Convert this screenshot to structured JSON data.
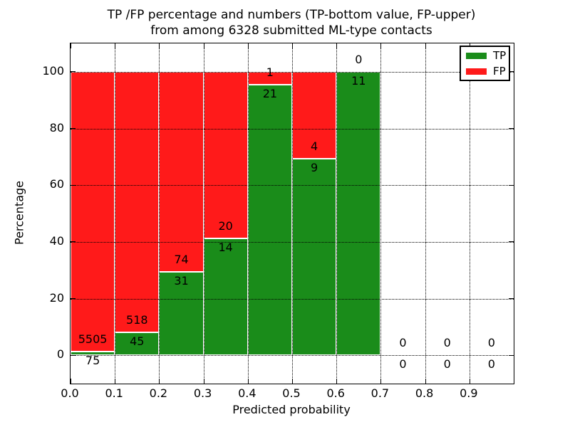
{
  "figure": {
    "title_line1": "TP /FP percentage and numbers (TP-bottom value, FP-upper)",
    "title_line2": "from among 6328 submitted ML-type contacts"
  },
  "axes": {
    "xlabel": "Predicted probability",
    "ylabel": "Percentage",
    "x_tick_labels": [
      "0.0",
      "0.1",
      "0.2",
      "0.3",
      "0.4",
      "0.5",
      "0.6",
      "0.7",
      "0.8",
      "0.9"
    ],
    "y_tick_labels": [
      "0",
      "20",
      "40",
      "60",
      "80",
      "100"
    ],
    "x_tick_values": [
      0.0,
      0.1,
      0.2,
      0.3,
      0.4,
      0.5,
      0.6,
      0.7,
      0.8,
      0.9
    ],
    "y_tick_values": [
      0,
      20,
      40,
      60,
      80,
      100
    ]
  },
  "legend": {
    "position": "upper right",
    "entries": [
      {
        "label": "TP",
        "color": "#1a8c1a"
      },
      {
        "label": "FP",
        "color": "#ff1a1a"
      }
    ]
  },
  "chart_data": {
    "type": "bar",
    "stacked": true,
    "title": "TP /FP percentage and numbers (TP-bottom value, FP-upper) from among 6328 submitted ML-type contacts",
    "xlabel": "Predicted probability",
    "ylabel": "Percentage",
    "xlim": [
      0.0,
      1.0
    ],
    "ylim": [
      -10,
      110
    ],
    "grid": true,
    "grid_style": "dotted",
    "total_contacts": 6328,
    "bin_width": 0.1,
    "bin_starts": [
      0.0,
      0.1,
      0.2,
      0.3,
      0.4,
      0.5,
      0.6,
      0.7,
      0.8,
      0.9
    ],
    "series": [
      {
        "name": "TP",
        "color": "#1a8c1a",
        "counts": [
          75,
          45,
          31,
          14,
          21,
          9,
          11,
          0,
          0,
          0
        ]
      },
      {
        "name": "FP",
        "color": "#ff1a1a",
        "counts": [
          5505,
          518,
          74,
          20,
          1,
          4,
          0,
          0,
          0,
          0
        ]
      }
    ],
    "tp_percent": [
      1.3,
      8.0,
      29.5,
      41.2,
      95.5,
      69.2,
      100.0,
      0,
      0,
      0
    ],
    "bar_edge_color": "#ffffff"
  }
}
